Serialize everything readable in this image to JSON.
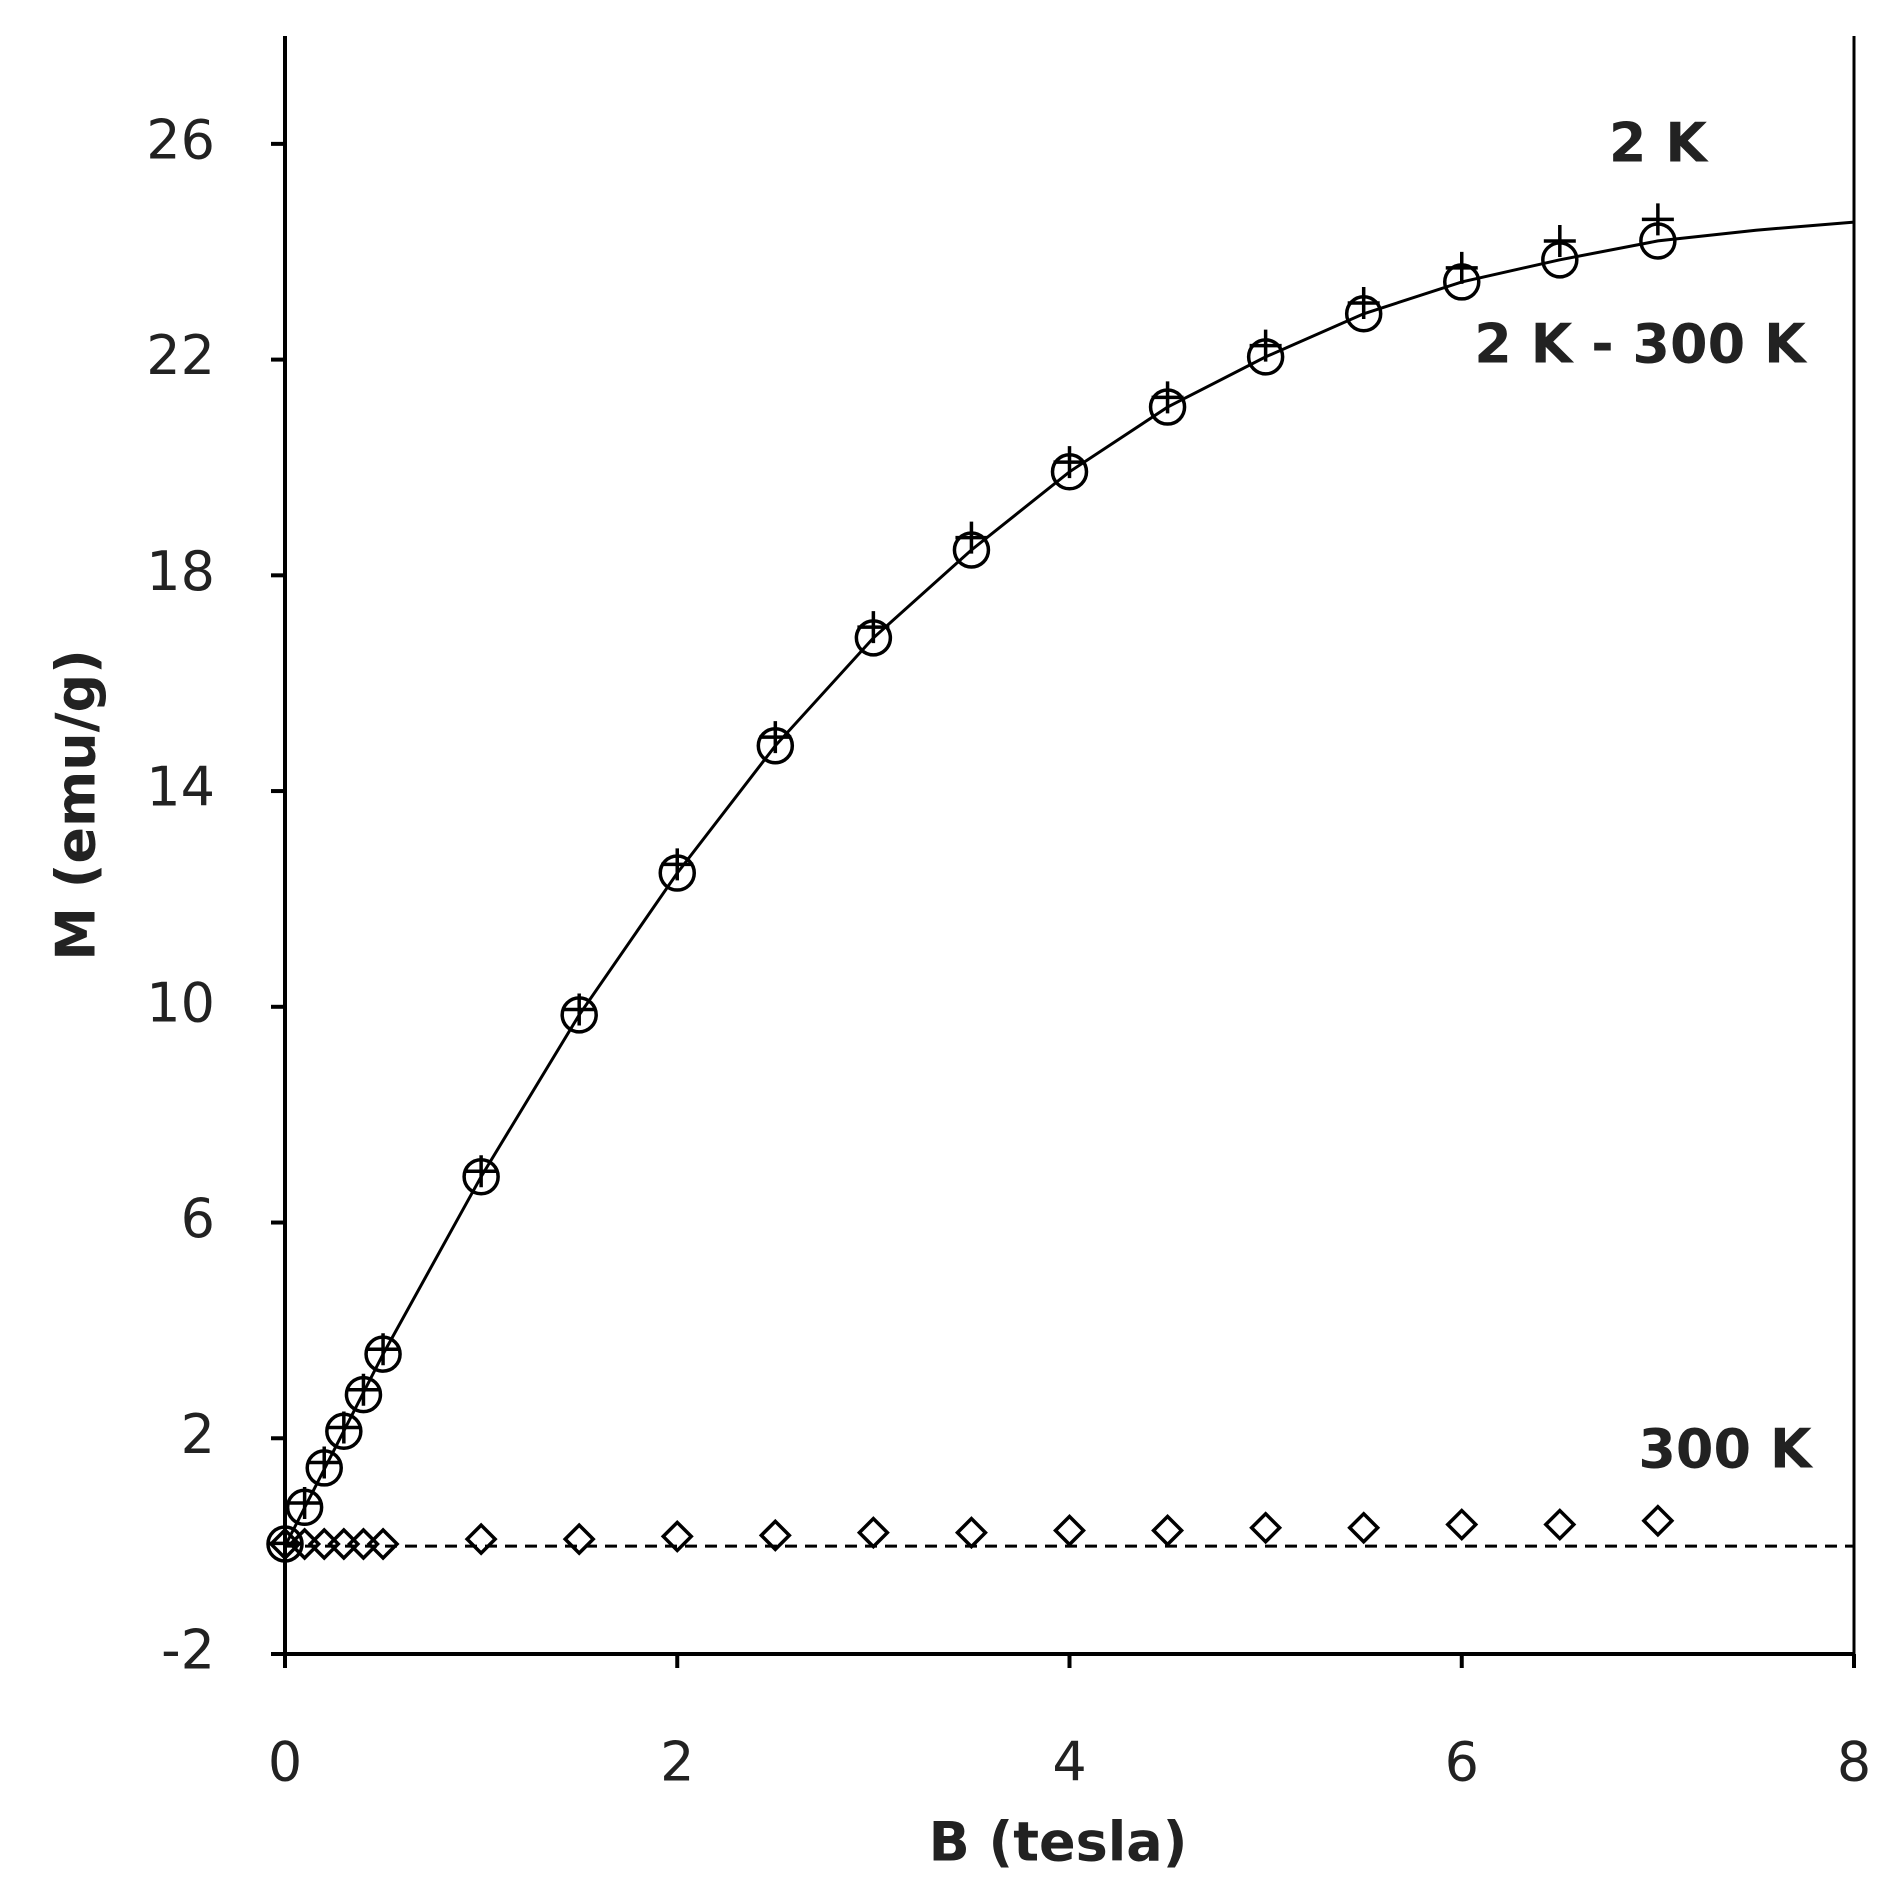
{
  "chart_data": {
    "type": "scatter",
    "x_label": "B (tesla)",
    "y_label": "M (emu/g)",
    "xlim": [
      0,
      8
    ],
    "xticks": [
      0,
      2,
      4,
      6,
      8
    ],
    "ylim": [
      -2,
      28
    ],
    "yticks": [
      -2,
      2,
      6,
      10,
      14,
      18,
      22,
      26
    ],
    "x": [
      0,
      0.1,
      0.2,
      0.3,
      0.4,
      0.5,
      1,
      1.5,
      2,
      2.5,
      3,
      3.5,
      4,
      4.5,
      5,
      5.5,
      6,
      6.5,
      7
    ],
    "series": [
      {
        "name": "2 K",
        "marker": "plus",
        "color": "#000000",
        "values": [
          0.05,
          0.8,
          1.55,
          2.2,
          2.9,
          3.65,
          6.95,
          9.95,
          12.64,
          15.0,
          17.04,
          18.7,
          20.1,
          21.3,
          22.26,
          23.05,
          23.7,
          24.2,
          24.6
        ]
      },
      {
        "name": "2 K - 300 K",
        "marker": "circle",
        "color": "#000000",
        "values": [
          0.04,
          0.72,
          1.45,
          2.13,
          2.81,
          3.56,
          6.85,
          9.85,
          12.48,
          14.84,
          16.84,
          18.47,
          19.92,
          21.12,
          22.05,
          22.85,
          23.44,
          23.85,
          24.2
        ]
      },
      {
        "name": "300 K",
        "marker": "diamond",
        "color": "#000000",
        "values": [
          0.04,
          0.04,
          0.04,
          0.04,
          0.04,
          0.04,
          0.13,
          0.13,
          0.18,
          0.2,
          0.25,
          0.25,
          0.29,
          0.29,
          0.34,
          0.34,
          0.4,
          0.4,
          0.47
        ]
      }
    ],
    "fit": {
      "style": "solid",
      "color": "#000000",
      "x": [
        0,
        0.5,
        1,
        1.5,
        2,
        2.5,
        3,
        3.5,
        4,
        4.5,
        5,
        5.5,
        6,
        6.5,
        7,
        7.5,
        8
      ],
      "values": [
        0,
        3.56,
        6.85,
        9.85,
        12.48,
        14.84,
        16.84,
        18.47,
        19.92,
        21.12,
        22.05,
        22.85,
        23.44,
        23.85,
        24.2,
        24.4,
        24.55
      ]
    },
    "reference_line": {
      "style": "dashed",
      "value": 0
    }
  }
}
